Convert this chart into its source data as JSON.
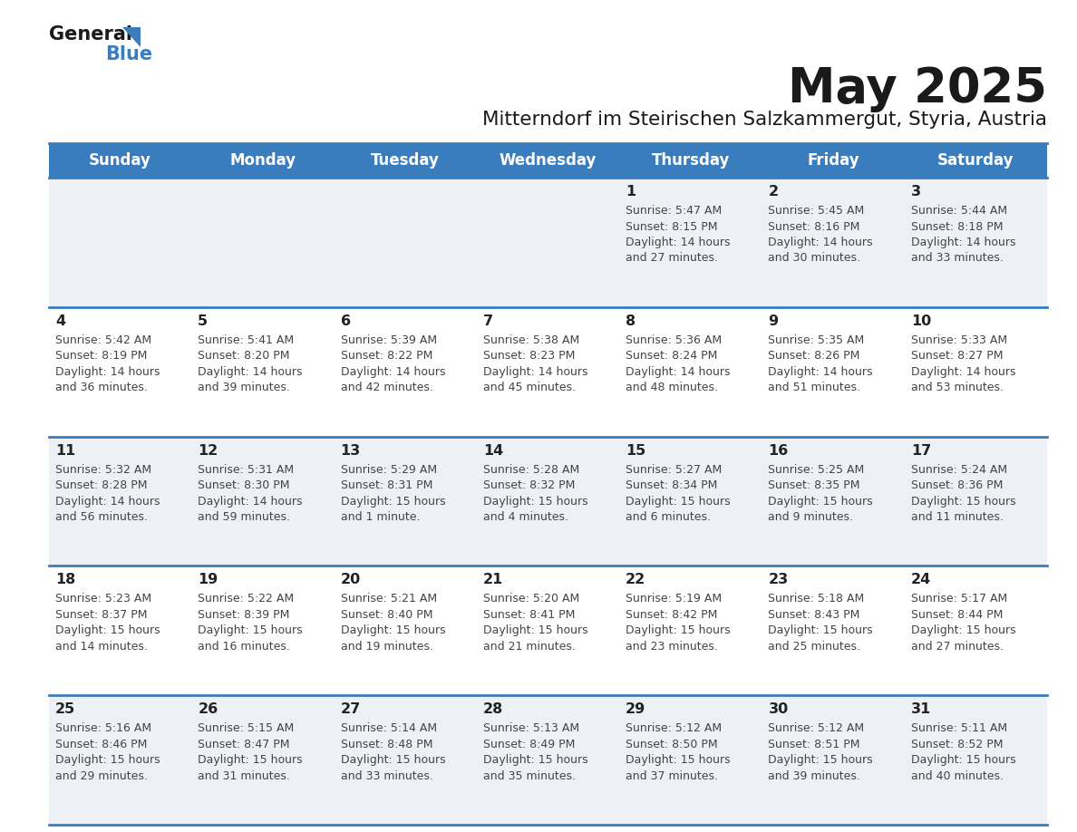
{
  "title": "May 2025",
  "subtitle": "Mitterndorf im Steirischen Salzkammergut, Styria, Austria",
  "header_bg": "#3a7dbf",
  "header_text": "#ffffff",
  "row_bg_even": "#edf1f5",
  "row_bg_odd": "#ffffff",
  "day_number_color": "#222222",
  "text_color": "#444444",
  "grid_color": "#3a7dbf",
  "days": [
    "Sunday",
    "Monday",
    "Tuesday",
    "Wednesday",
    "Thursday",
    "Friday",
    "Saturday"
  ],
  "weeks": [
    [
      {
        "date": "",
        "sunrise": "",
        "sunset": "",
        "daylight": ""
      },
      {
        "date": "",
        "sunrise": "",
        "sunset": "",
        "daylight": ""
      },
      {
        "date": "",
        "sunrise": "",
        "sunset": "",
        "daylight": ""
      },
      {
        "date": "",
        "sunrise": "",
        "sunset": "",
        "daylight": ""
      },
      {
        "date": "1",
        "sunrise": "5:47 AM",
        "sunset": "8:15 PM",
        "daylight": "14 hours\nand 27 minutes."
      },
      {
        "date": "2",
        "sunrise": "5:45 AM",
        "sunset": "8:16 PM",
        "daylight": "14 hours\nand 30 minutes."
      },
      {
        "date": "3",
        "sunrise": "5:44 AM",
        "sunset": "8:18 PM",
        "daylight": "14 hours\nand 33 minutes."
      }
    ],
    [
      {
        "date": "4",
        "sunrise": "5:42 AM",
        "sunset": "8:19 PM",
        "daylight": "14 hours\nand 36 minutes."
      },
      {
        "date": "5",
        "sunrise": "5:41 AM",
        "sunset": "8:20 PM",
        "daylight": "14 hours\nand 39 minutes."
      },
      {
        "date": "6",
        "sunrise": "5:39 AM",
        "sunset": "8:22 PM",
        "daylight": "14 hours\nand 42 minutes."
      },
      {
        "date": "7",
        "sunrise": "5:38 AM",
        "sunset": "8:23 PM",
        "daylight": "14 hours\nand 45 minutes."
      },
      {
        "date": "8",
        "sunrise": "5:36 AM",
        "sunset": "8:24 PM",
        "daylight": "14 hours\nand 48 minutes."
      },
      {
        "date": "9",
        "sunrise": "5:35 AM",
        "sunset": "8:26 PM",
        "daylight": "14 hours\nand 51 minutes."
      },
      {
        "date": "10",
        "sunrise": "5:33 AM",
        "sunset": "8:27 PM",
        "daylight": "14 hours\nand 53 minutes."
      }
    ],
    [
      {
        "date": "11",
        "sunrise": "5:32 AM",
        "sunset": "8:28 PM",
        "daylight": "14 hours\nand 56 minutes."
      },
      {
        "date": "12",
        "sunrise": "5:31 AM",
        "sunset": "8:30 PM",
        "daylight": "14 hours\nand 59 minutes."
      },
      {
        "date": "13",
        "sunrise": "5:29 AM",
        "sunset": "8:31 PM",
        "daylight": "15 hours\nand 1 minute."
      },
      {
        "date": "14",
        "sunrise": "5:28 AM",
        "sunset": "8:32 PM",
        "daylight": "15 hours\nand 4 minutes."
      },
      {
        "date": "15",
        "sunrise": "5:27 AM",
        "sunset": "8:34 PM",
        "daylight": "15 hours\nand 6 minutes."
      },
      {
        "date": "16",
        "sunrise": "5:25 AM",
        "sunset": "8:35 PM",
        "daylight": "15 hours\nand 9 minutes."
      },
      {
        "date": "17",
        "sunrise": "5:24 AM",
        "sunset": "8:36 PM",
        "daylight": "15 hours\nand 11 minutes."
      }
    ],
    [
      {
        "date": "18",
        "sunrise": "5:23 AM",
        "sunset": "8:37 PM",
        "daylight": "15 hours\nand 14 minutes."
      },
      {
        "date": "19",
        "sunrise": "5:22 AM",
        "sunset": "8:39 PM",
        "daylight": "15 hours\nand 16 minutes."
      },
      {
        "date": "20",
        "sunrise": "5:21 AM",
        "sunset": "8:40 PM",
        "daylight": "15 hours\nand 19 minutes."
      },
      {
        "date": "21",
        "sunrise": "5:20 AM",
        "sunset": "8:41 PM",
        "daylight": "15 hours\nand 21 minutes."
      },
      {
        "date": "22",
        "sunrise": "5:19 AM",
        "sunset": "8:42 PM",
        "daylight": "15 hours\nand 23 minutes."
      },
      {
        "date": "23",
        "sunrise": "5:18 AM",
        "sunset": "8:43 PM",
        "daylight": "15 hours\nand 25 minutes."
      },
      {
        "date": "24",
        "sunrise": "5:17 AM",
        "sunset": "8:44 PM",
        "daylight": "15 hours\nand 27 minutes."
      }
    ],
    [
      {
        "date": "25",
        "sunrise": "5:16 AM",
        "sunset": "8:46 PM",
        "daylight": "15 hours\nand 29 minutes."
      },
      {
        "date": "26",
        "sunrise": "5:15 AM",
        "sunset": "8:47 PM",
        "daylight": "15 hours\nand 31 minutes."
      },
      {
        "date": "27",
        "sunrise": "5:14 AM",
        "sunset": "8:48 PM",
        "daylight": "15 hours\nand 33 minutes."
      },
      {
        "date": "28",
        "sunrise": "5:13 AM",
        "sunset": "8:49 PM",
        "daylight": "15 hours\nand 35 minutes."
      },
      {
        "date": "29",
        "sunrise": "5:12 AM",
        "sunset": "8:50 PM",
        "daylight": "15 hours\nand 37 minutes."
      },
      {
        "date": "30",
        "sunrise": "5:12 AM",
        "sunset": "8:51 PM",
        "daylight": "15 hours\nand 39 minutes."
      },
      {
        "date": "31",
        "sunrise": "5:11 AM",
        "sunset": "8:52 PM",
        "daylight": "15 hours\nand 40 minutes."
      }
    ]
  ],
  "logo_general_color": "#1a1a1a",
  "logo_blue_color": "#3a7dbf",
  "logo_triangle_color": "#3a7dbf"
}
